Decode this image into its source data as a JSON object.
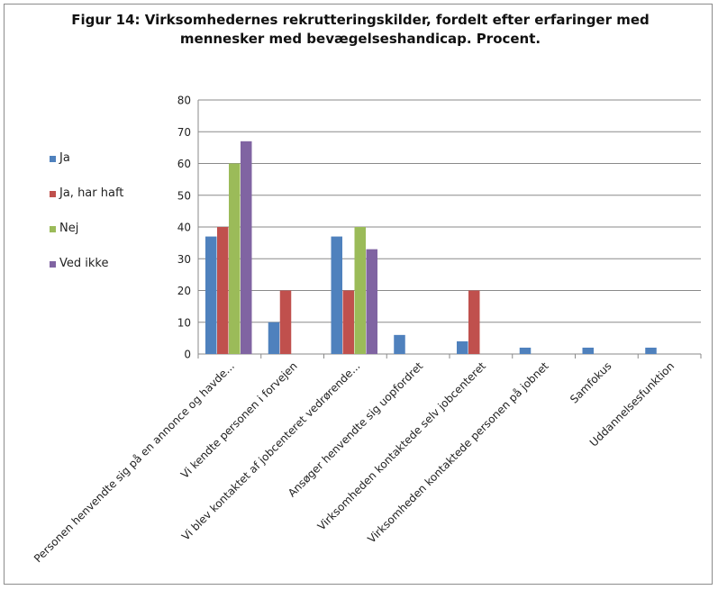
{
  "chart_data": {
    "type": "bar",
    "title": "Figur 14: Virksomhedernes rekrutteringskilder, fordelt efter erfaringer med mennesker med bevægelseshandicap. Procent.",
    "title_lines": [
      "Figur 14: Virksomhedernes rekrutteringskilder, fordelt efter erfaringer med",
      "mennesker med bevægelseshandicap. Procent."
    ],
    "categories": [
      "Personen henvendte sig på en annonce og havde...",
      "Vi kendte personen i forvejen",
      "Vi blev kontaktet af jobcenteret vedrørende...",
      "Ansøger henvendte sig uopfordret",
      "Virksomheden kontaktede selv jobcenteret",
      "Virksomheden kontaktede personen på jobnet",
      "Samfokus",
      "Uddannelsesfunktion"
    ],
    "series": [
      {
        "name": "Ja",
        "color": "#4f81bd",
        "values": [
          37,
          10,
          37,
          6,
          4,
          2,
          2,
          2
        ]
      },
      {
        "name": "Ja, har haft",
        "color": "#c0504d",
        "values": [
          40,
          20,
          20,
          0,
          20,
          0,
          0,
          0
        ]
      },
      {
        "name": "Nej",
        "color": "#9bbb59",
        "values": [
          60,
          0,
          40,
          0,
          0,
          0,
          0,
          0
        ]
      },
      {
        "name": "Ved ikke",
        "color": "#8064a2",
        "values": [
          67,
          0,
          33,
          0,
          0,
          0,
          0,
          0
        ]
      }
    ],
    "ylim": [
      0,
      80
    ],
    "yticks": [
      "0",
      "10",
      "20",
      "30",
      "40",
      "50",
      "60",
      "70",
      "80"
    ],
    "xlabel": "",
    "ylabel": "",
    "grid": true,
    "legend_position": "left"
  }
}
